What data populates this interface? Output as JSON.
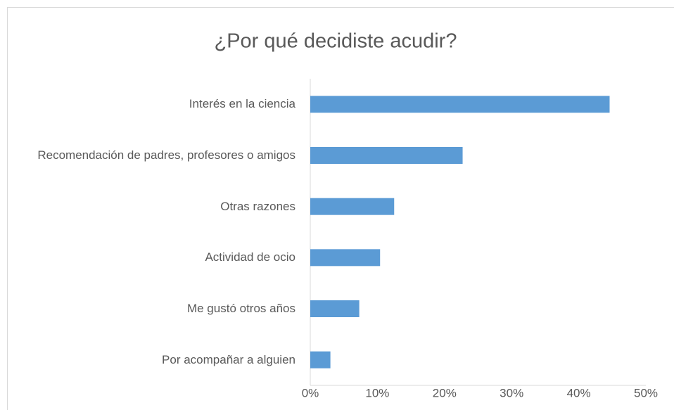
{
  "chart_data": {
    "type": "bar",
    "orientation": "horizontal",
    "title": "¿Por qué decidiste acudir?",
    "categories": [
      "Interés en la ciencia",
      "Recomendación de padres, profesores o amigos",
      "Otras razones",
      "Actividad de ocio",
      "Me gustó otros años",
      "Por acompañar a alguien"
    ],
    "values": [
      44.6,
      22.7,
      12.5,
      10.4,
      7.3,
      3.0
    ],
    "color": "#5b9bd5",
    "xlim": [
      0,
      50
    ],
    "xticks": [
      {
        "value": 0,
        "label": "0%"
      },
      {
        "value": 10,
        "label": "10%"
      },
      {
        "value": 20,
        "label": "20%"
      },
      {
        "value": 30,
        "label": "30%"
      },
      {
        "value": 40,
        "label": "40%"
      },
      {
        "value": 50,
        "label": "50%"
      }
    ],
    "grid": false
  }
}
